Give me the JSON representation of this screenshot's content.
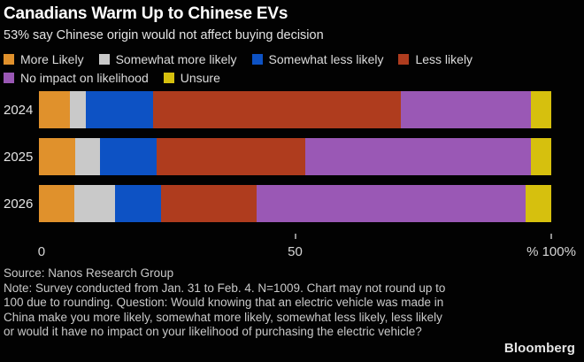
{
  "header": {
    "title": "Canadians Warm Up to Chinese EVs",
    "subtitle": "53% say Chinese origin would not affect buying decision"
  },
  "chart_data": {
    "type": "bar",
    "orientation": "horizontal-stacked",
    "unit": "percent",
    "xlim": [
      0,
      100
    ],
    "grid": false,
    "legend_position": "top",
    "categories": [
      "2024",
      "2025",
      "2026"
    ],
    "series": [
      {
        "name": "More Likely",
        "color": "#E0912C",
        "values": [
          6,
          7,
          7
        ]
      },
      {
        "name": "Somewhat more likely",
        "color": "#C9C9C9",
        "values": [
          3,
          5,
          8
        ]
      },
      {
        "name": "Somewhat less likely",
        "color": "#0D52C4",
        "values": [
          13,
          11,
          9
        ]
      },
      {
        "name": "Less likely",
        "color": "#AF3C1E",
        "values": [
          48,
          29,
          19
        ]
      },
      {
        "name": "No impact on likelihood",
        "color": "#9A58B5",
        "values": [
          25,
          44,
          53
        ]
      },
      {
        "name": "Unsure",
        "color": "#D6C00E",
        "values": [
          4,
          4,
          5
        ]
      }
    ],
    "x_ticks": [
      {
        "label": "0",
        "pos": 0,
        "tick": false
      },
      {
        "label": "50",
        "pos": 50,
        "tick": true
      },
      {
        "label": "% 100%",
        "pos": 100,
        "tick": true
      }
    ]
  },
  "footer": {
    "source": "Source: Nanos Research Group",
    "note": "Note: Survey conducted from Jan. 31 to Feb. 4. N=1009. Chart may not round up to 100 due to rounding. Question: Would knowing that an electric vehicle was made in China make you more likely, somewhat more likely, somewhat less likely, less likely or would it have no impact on your likelihood of purchasing the electric vehicle?",
    "logo": "Bloomberg"
  }
}
